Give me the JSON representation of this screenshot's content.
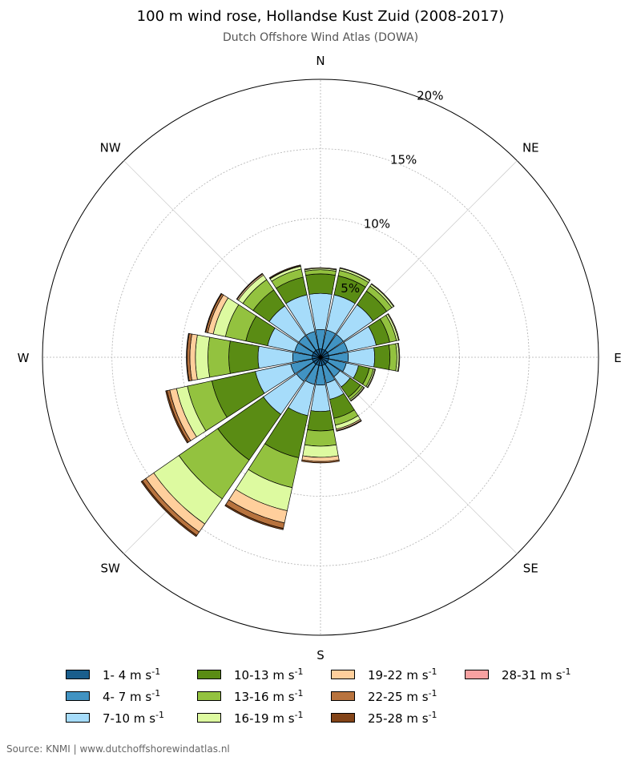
{
  "header": {
    "title": "100 m wind rose, Hollandse Kust Zuid (2008-2017)",
    "subtitle": "Dutch Offshore Wind Atlas (DOWA)"
  },
  "footer": {
    "source": "Source: KNMI | www.dutchoffshorewindatlas.nl"
  },
  "chart_data": {
    "type": "wind-rose",
    "directions": [
      "N",
      "NNE",
      "NE",
      "ENE",
      "E",
      "ESE",
      "SE",
      "SSE",
      "S",
      "SSW",
      "SW",
      "WSW",
      "W",
      "WNW",
      "NW",
      "NNW"
    ],
    "compass_labels": [
      "N",
      "NE",
      "E",
      "SE",
      "S",
      "SW",
      "W",
      "NW"
    ],
    "radial_ticks": [
      5,
      10,
      15,
      20
    ],
    "radial_tick_labels": [
      "5%",
      "10%",
      "15%",
      "20%"
    ],
    "rmax": 20,
    "speed_bins": [
      {
        "label": "1- 4 m s",
        "sup": "-1",
        "color": "#1a5e8c"
      },
      {
        "label": "4- 7 m s",
        "sup": "-1",
        "color": "#4193c2"
      },
      {
        "label": "7-10 m s",
        "sup": "-1",
        "color": "#a6dcfa"
      },
      {
        "label": "10-13 m s",
        "sup": "-1",
        "color": "#5a8c14"
      },
      {
        "label": "13-16 m s",
        "sup": "-1",
        "color": "#93c23f"
      },
      {
        "label": "16-19 m s",
        "sup": "-1",
        "color": "#ddfaa0"
      },
      {
        "label": "19-22 m s",
        "sup": "-1",
        "color": "#ffcf9c"
      },
      {
        "label": "22-25 m s",
        "sup": "-1",
        "color": "#b8733e"
      },
      {
        "label": "25-28 m s",
        "sup": "-1",
        "color": "#834418"
      },
      {
        "label": "28-31 m s",
        "sup": "-1",
        "color": "#f7a1a1"
      }
    ],
    "cumulative": [
      [
        0.6,
        2.0,
        4.6,
        6.0,
        6.3,
        6.4,
        6.45,
        6.45,
        6.45,
        6.45
      ],
      [
        0.6,
        2.0,
        4.6,
        6.0,
        6.4,
        6.55,
        6.6,
        6.6,
        6.6,
        6.6
      ],
      [
        0.6,
        2.0,
        4.6,
        5.8,
        6.25,
        6.4,
        6.45,
        6.45,
        6.45,
        6.45
      ],
      [
        0.6,
        2.0,
        4.1,
        5.1,
        5.6,
        5.75,
        5.8,
        5.8,
        5.8,
        5.8
      ],
      [
        0.6,
        2.0,
        3.9,
        5.0,
        5.5,
        5.65,
        5.7,
        5.7,
        5.7,
        5.7
      ],
      [
        0.6,
        1.9,
        2.8,
        3.6,
        3.9,
        4.0,
        4.05,
        4.05,
        4.05,
        4.05
      ],
      [
        0.6,
        1.7,
        2.6,
        3.5,
        3.7,
        3.8,
        3.85,
        3.85,
        3.85,
        3.85
      ],
      [
        0.6,
        1.9,
        3.1,
        4.5,
        5.0,
        5.3,
        5.4,
        5.45,
        5.45,
        5.45
      ],
      [
        0.6,
        2.0,
        3.9,
        5.3,
        6.4,
        7.2,
        7.5,
        7.6,
        7.6,
        7.6
      ],
      [
        0.6,
        2.0,
        4.3,
        7.4,
        9.6,
        11.3,
        12.2,
        12.6,
        12.7,
        12.7
      ],
      [
        0.6,
        2.1,
        5.0,
        9.0,
        12.4,
        14.6,
        15.3,
        15.6,
        15.7,
        15.7
      ],
      [
        0.6,
        2.2,
        4.8,
        8.0,
        9.8,
        10.6,
        11.1,
        11.3,
        11.4,
        11.4
      ],
      [
        0.6,
        2.0,
        4.5,
        6.6,
        8.1,
        9.0,
        9.4,
        9.6,
        9.65,
        9.65
      ],
      [
        0.6,
        1.9,
        3.9,
        5.5,
        7.0,
        7.9,
        8.3,
        8.45,
        8.5,
        8.5
      ],
      [
        0.6,
        1.9,
        4.5,
        5.9,
        6.8,
        7.2,
        7.3,
        7.35,
        7.35,
        7.35
      ],
      [
        0.6,
        1.9,
        4.6,
        5.9,
        6.5,
        6.7,
        6.75,
        6.8,
        6.8,
        6.8
      ]
    ],
    "grid": true,
    "legend_position": "bottom"
  }
}
